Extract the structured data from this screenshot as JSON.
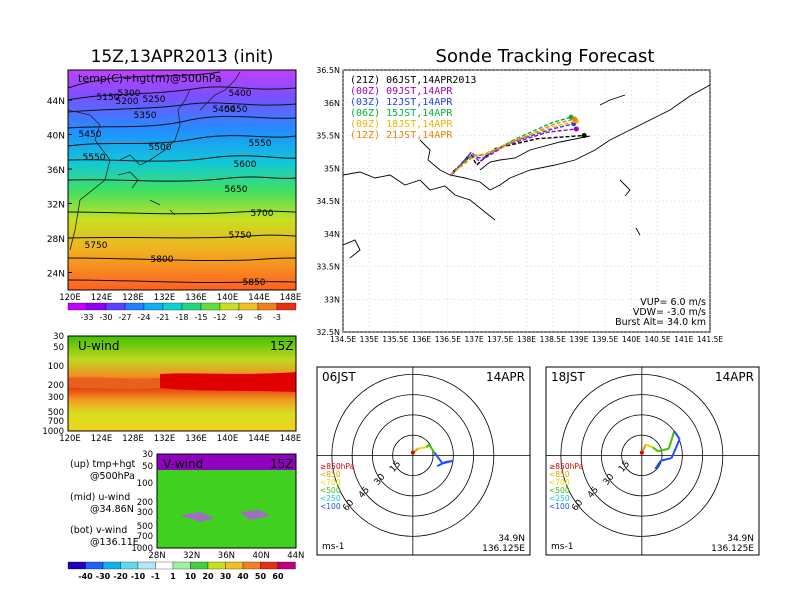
{
  "left": {
    "title": "15Z,13APR2013 (init)",
    "map": {
      "label": "temp(C)+hgt(m)@500hPa",
      "lat_ticks": [
        "44N",
        "40N",
        "36N",
        "32N",
        "28N",
        "24N"
      ],
      "lon_ticks": [
        "120E",
        "124E",
        "128E",
        "132E",
        "136E",
        "140E",
        "144E",
        "148E"
      ],
      "contours": [
        "5150",
        "5200",
        "5250",
        "5300",
        "5350",
        "5400",
        "5400",
        "5450",
        "5450",
        "5500",
        "5550",
        "5550",
        "5600",
        "5650",
        "5700",
        "5750",
        "5750",
        "5800",
        "5850"
      ]
    },
    "temp_colorbar": [
      "-33",
      "-30",
      "-27",
      "-24",
      "-21",
      "-18",
      "-15",
      "-12",
      "-9",
      "-6",
      "-3"
    ],
    "uwind": {
      "label": "U-wind",
      "time": "15Z",
      "p_ticks": [
        "30",
        "50",
        "100",
        "200",
        "300",
        "500",
        "700",
        "1000"
      ],
      "lon_ticks": [
        "120E",
        "124E",
        "128E",
        "132E",
        "136E",
        "140E",
        "144E",
        "148E"
      ]
    },
    "vwind": {
      "label": "V-wind",
      "time": "15Z",
      "p_ticks": [
        "30",
        "50",
        "100",
        "200",
        "300",
        "500",
        "700",
        "1000"
      ],
      "lat_ticks": [
        "28N",
        "32N",
        "36N",
        "40N",
        "44N"
      ]
    },
    "legend": [
      {
        "head": "(up) tmp+hgt",
        "sub": "@500hPa"
      },
      {
        "head": "(mid) u-wind",
        "sub": "@34.86N"
      },
      {
        "head": "(bot) v-wind",
        "sub": "@136.11E"
      }
    ],
    "wind_colorbar": [
      "-40",
      "-30",
      "-20",
      "-10",
      "-1",
      "1",
      "10",
      "20",
      "30",
      "40",
      "50",
      "60"
    ]
  },
  "right": {
    "title": "Sonde Tracking Forecast",
    "track_map": {
      "lat_ticks": [
        "36.5N",
        "36N",
        "35.5N",
        "35N",
        "34.5N",
        "34N",
        "33.5N",
        "33N",
        "32.5N"
      ],
      "lon_ticks": [
        "134.5E",
        "135E",
        "135.5E",
        "136E",
        "136.5E",
        "137E",
        "137.5E",
        "138E",
        "138.5E",
        "139E",
        "139.5E",
        "140E",
        "140.5E",
        "141E",
        "141.5E"
      ],
      "launches": [
        {
          "label": "(21Z)  06JST,14APR2013",
          "color": "#000000"
        },
        {
          "label": "(00Z)  09JST,14APR",
          "color": "#a000c0"
        },
        {
          "label": "(03Z)  12JST,14APR",
          "color": "#1e3cff"
        },
        {
          "label": "(06Z)  15JST,14APR",
          "color": "#00b43c"
        },
        {
          "label": "(09Z)  18JST,14APR",
          "color": "#f0b400"
        },
        {
          "label": "(12Z)  21JST,14APR",
          "color": "#f08000"
        }
      ],
      "params": [
        "VUP=  6.0  m/s",
        "VDW= -3.0  m/s",
        "Burst Alt=  34.0  km"
      ]
    },
    "hodo1": {
      "time": "06JST",
      "date": "14APR",
      "rings": [
        "15",
        "30",
        "45",
        "60"
      ],
      "unit": "ms-1",
      "lat": "34.9N",
      "lon": "136.125E"
    },
    "hodo2": {
      "time": "18JST",
      "date": "14APR",
      "rings": [
        "15",
        "30",
        "45",
        "60"
      ],
      "unit": "ms-1",
      "lat": "34.9N",
      "lon": "136.125E"
    },
    "hodo_legend": [
      "≥850hPa",
      "<850",
      "<700",
      "<500",
      "<250",
      "<100"
    ]
  },
  "chart_data": [
    {
      "type": "heatmap",
      "title": "15Z,13APR2013 (init)",
      "label": "temp(C)+hgt(m)@500hPa",
      "xlim": [
        120,
        150
      ],
      "ylim": [
        22,
        47
      ],
      "colorbar": [
        -33,
        -30,
        -27,
        -24,
        -21,
        -18,
        -15,
        -12,
        -9,
        -6,
        -3
      ],
      "height_contours": [
        5150,
        5200,
        5250,
        5300,
        5350,
        5400,
        5450,
        5500,
        5550,
        5600,
        5650,
        5700,
        5750,
        5800,
        5850
      ]
    },
    {
      "type": "heatmap",
      "label": "U-wind",
      "xlim": [
        120,
        150
      ],
      "pressure_ticks": [
        30,
        50,
        100,
        200,
        300,
        500,
        700,
        1000
      ],
      "jet_core_pressure": 200
    },
    {
      "type": "heatmap",
      "label": "V-wind",
      "xlim": [
        28,
        44
      ],
      "pressure_ticks": [
        30,
        50,
        100,
        200,
        300,
        500,
        700,
        1000
      ],
      "colorbar": [
        -40,
        -30,
        -20,
        -10,
        -1,
        1,
        10,
        20,
        30,
        40,
        50,
        60
      ]
    },
    {
      "type": "line",
      "title": "Sonde Tracking Forecast",
      "xlim": [
        134.5,
        141.5
      ],
      "ylim": [
        32.5,
        36.5
      ],
      "series": [
        {
          "name": "(21Z) 06JST,14APR2013",
          "color": "#000000",
          "lon": [
            136.6,
            136.95,
            137.05,
            137.4,
            138.2,
            139.1
          ],
          "lat": [
            34.95,
            35.2,
            35.05,
            35.3,
            35.45,
            35.5
          ]
        },
        {
          "name": "(00Z) 09JST,14APR",
          "color": "#a000c0",
          "lon": [
            136.6,
            136.95,
            137.1,
            137.6,
            138.4,
            138.95
          ],
          "lat": [
            34.92,
            35.25,
            35.1,
            35.35,
            35.55,
            35.6
          ]
        },
        {
          "name": "(03Z) 12JST,14APR",
          "color": "#1e3cff",
          "lon": [
            136.55,
            136.9,
            137.15,
            137.7,
            138.5,
            138.9
          ],
          "lat": [
            34.88,
            35.2,
            35.15,
            35.4,
            35.6,
            35.68
          ]
        },
        {
          "name": "(06Z) 15JST,14APR",
          "color": "#00b43c",
          "lon": [
            136.55,
            136.95,
            137.2,
            137.8,
            138.5,
            138.85
          ],
          "lat": [
            34.9,
            35.2,
            35.2,
            35.45,
            35.7,
            35.78
          ]
        },
        {
          "name": "(09Z) 18JST,14APR",
          "color": "#f0b400",
          "lon": [
            136.55,
            137.0,
            137.2,
            137.85,
            138.6,
            138.95
          ],
          "lat": [
            34.9,
            35.18,
            35.22,
            35.45,
            35.65,
            35.72
          ]
        },
        {
          "name": "(12Z) 21JST,14APR",
          "color": "#f08000",
          "lon": [
            136.55,
            137.0,
            137.2,
            137.8,
            138.55,
            138.92
          ],
          "lat": [
            34.9,
            35.2,
            35.2,
            35.42,
            35.68,
            35.75
          ]
        }
      ]
    },
    {
      "type": "line",
      "title": "06JST 14APR",
      "rings": [
        15,
        30,
        45,
        60
      ],
      "u": [
        0,
        4,
        10,
        12,
        16,
        22,
        30,
        24,
        18
      ],
      "v": [
        2,
        5,
        6,
        8,
        2,
        -6,
        -4,
        -5,
        -8
      ],
      "colors": [
        "#e00000",
        "#e0a000",
        "#e0e000",
        "#40c000",
        "#40c000",
        "#1e50ff",
        "#1e50ff",
        "#1e50ff",
        "#1e50ff"
      ]
    },
    {
      "type": "line",
      "title": "18JST 14APR",
      "rings": [
        15,
        30,
        45,
        60
      ],
      "u": [
        0,
        3,
        8,
        12,
        16,
        20,
        24,
        28,
        22,
        14,
        10
      ],
      "v": [
        2,
        8,
        6,
        3,
        4,
        5,
        18,
        12,
        -2,
        -4,
        -10
      ],
      "colors": [
        "#e00000",
        "#e0a000",
        "#e0e000",
        "#40c000",
        "#40c000",
        "#40c000",
        "#40c000",
        "#1e50ff",
        "#1e50ff",
        "#1e50ff",
        "#1e50ff"
      ]
    }
  ]
}
